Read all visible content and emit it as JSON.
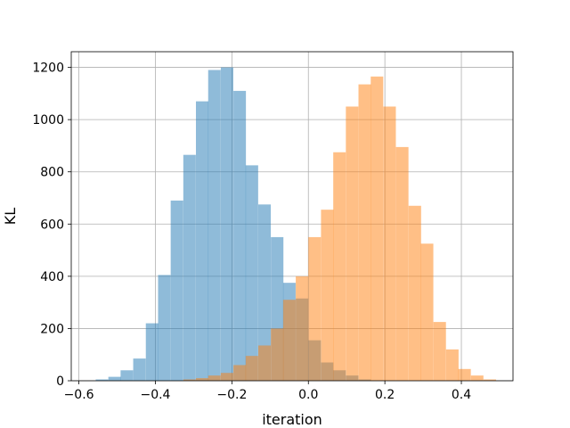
{
  "chart_data": {
    "type": "histogram",
    "title": "",
    "xlabel": "iteration",
    "ylabel": "KL",
    "xlim": [
      -0.62,
      0.535
    ],
    "ylim": [
      0,
      1260
    ],
    "xticks": [
      -0.6,
      -0.4,
      -0.2,
      0.0,
      0.2,
      0.4
    ],
    "xtick_labels": [
      "−0.6",
      "−0.4",
      "−0.2",
      "0.0",
      "0.2",
      "0.4"
    ],
    "yticks": [
      0,
      200,
      400,
      600,
      800,
      1000,
      1200
    ],
    "ytick_labels": [
      "0",
      "200",
      "400",
      "600",
      "800",
      "1000",
      "1200"
    ],
    "grid": true,
    "legend": false,
    "bin_width": 0.0327,
    "series": [
      {
        "color": "#1f77b4",
        "alpha": 0.5,
        "bin_starts": [
          -0.556,
          -0.523,
          -0.491,
          -0.458,
          -0.425,
          -0.393,
          -0.36,
          -0.327,
          -0.294,
          -0.262,
          -0.229,
          -0.196,
          -0.164,
          -0.131,
          -0.098,
          -0.066,
          -0.033,
          0.0,
          0.033,
          0.065,
          0.098,
          0.131,
          0.163
        ],
        "values": [
          5,
          15,
          40,
          85,
          220,
          405,
          690,
          865,
          1070,
          1190,
          1200,
          1110,
          825,
          675,
          550,
          375,
          315,
          155,
          70,
          40,
          20,
          5,
          1
        ]
      },
      {
        "color": "#ff7f0e",
        "alpha": 0.5,
        "bin_starts": [
          -0.327,
          -0.294,
          -0.262,
          -0.229,
          -0.196,
          -0.164,
          -0.131,
          -0.098,
          -0.066,
          -0.033,
          0.0,
          0.033,
          0.065,
          0.098,
          0.131,
          0.163,
          0.196,
          0.229,
          0.262,
          0.294,
          0.327,
          0.36,
          0.392,
          0.425,
          0.458
        ],
        "values": [
          5,
          10,
          20,
          30,
          60,
          95,
          135,
          200,
          310,
          400,
          550,
          655,
          875,
          1050,
          1135,
          1165,
          1050,
          895,
          670,
          525,
          225,
          120,
          45,
          20,
          5
        ]
      }
    ]
  }
}
